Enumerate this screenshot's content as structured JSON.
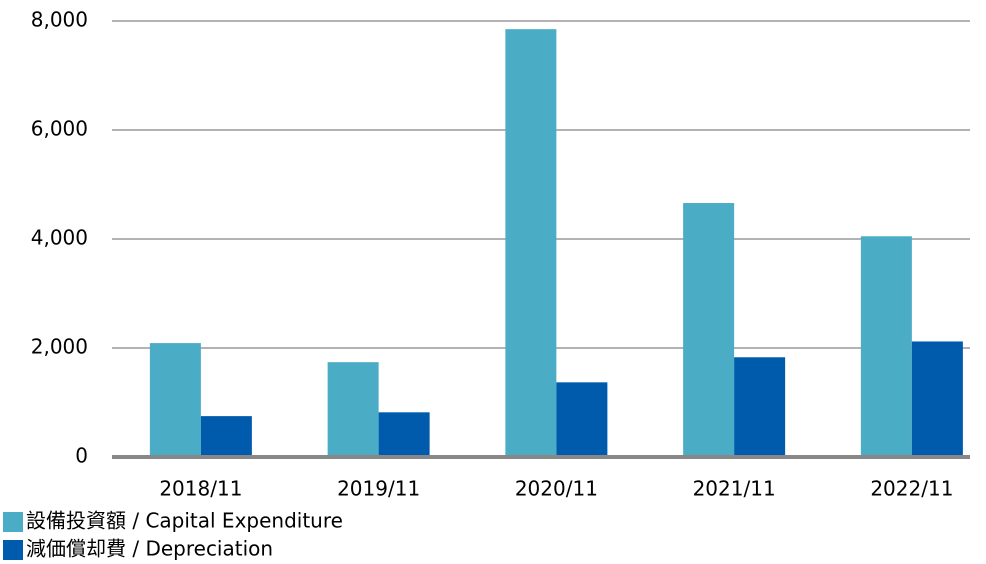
{
  "chart_data": {
    "type": "bar",
    "categories": [
      "2018/11",
      "2019/11",
      "2020/11",
      "2021/11",
      "2022/11"
    ],
    "series": [
      {
        "name": "設備投資額 / Capital Expenditure",
        "color": "#4bacc6",
        "values": [
          2090,
          1740,
          7850,
          4660,
          4050
        ]
      },
      {
        "name": "減価償却費 / Depreciation",
        "color": "#005bac",
        "values": [
          750,
          820,
          1370,
          1830,
          2120
        ]
      }
    ],
    "ylim": [
      0,
      8000
    ],
    "yticks": [
      0,
      {
        "value": 2000,
        "label": "2,000"
      },
      {
        "value": 4000,
        "label": "4,000"
      },
      {
        "value": 6000,
        "label": "6,000"
      },
      {
        "value": 8000,
        "label": "8,000"
      }
    ],
    "grid": true,
    "legend": "bottom-left"
  }
}
